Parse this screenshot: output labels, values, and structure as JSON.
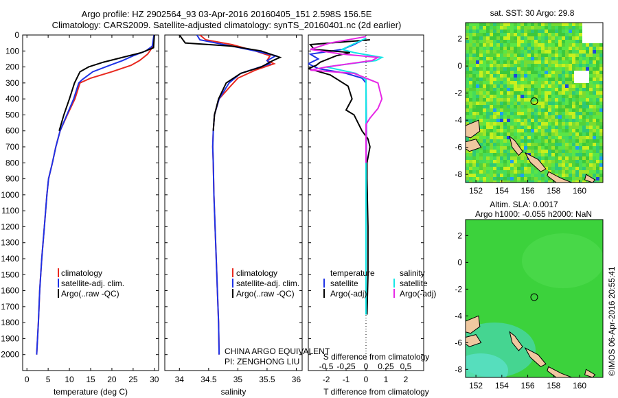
{
  "header": {
    "line1": "Argo profile: HZ 2902564_93 03-Apr-2016 20160405_151 2.598S 156.5E",
    "line2": "Climatology: CARS2009. Satellite-adjusted climatology: synTS_20160401.nc (2d earlier)"
  },
  "colors": {
    "climatology": "#e8281e",
    "satellite": "#1e32e6",
    "argo": "#000000",
    "sal_satellite": "#14e6e6",
    "sal_argo": "#e628e6"
  },
  "chart_data": [
    {
      "type": "line",
      "xlabel": "temperature (deg C)",
      "ylabel": "",
      "xlim": [
        -1,
        31
      ],
      "ylim": [
        2100,
        0
      ],
      "xticks": [
        0,
        5,
        10,
        15,
        20,
        25,
        30
      ],
      "yticks": [
        0,
        100,
        200,
        300,
        400,
        500,
        600,
        700,
        800,
        900,
        1000,
        1100,
        1200,
        1300,
        1400,
        1500,
        1600,
        1700,
        1800,
        1900,
        2000
      ],
      "legend": [
        "climatology",
        "satellite-adj. clim.",
        "Argo(..raw -QC)"
      ],
      "series": [
        {
          "name": "climatology",
          "color": "#e8281e",
          "points": [
            [
              29.9,
              0
            ],
            [
              29.8,
              60
            ],
            [
              29.2,
              90
            ],
            [
              28.4,
              120
            ],
            [
              26.5,
              160
            ],
            [
              24.5,
              190
            ],
            [
              20,
              230
            ],
            [
              15,
              270
            ],
            [
              12.5,
              300
            ],
            [
              11.3,
              400
            ],
            [
              9.5,
              500
            ],
            [
              7.8,
              600
            ],
            [
              6.8,
              700
            ],
            [
              6,
              800
            ],
            [
              5.1,
              900
            ],
            [
              4.7,
              1000
            ],
            [
              4.1,
              1200
            ],
            [
              3.5,
              1400
            ],
            [
              3,
              1600
            ],
            [
              2.7,
              1800
            ],
            [
              2.3,
              2000
            ]
          ]
        },
        {
          "name": "satellite-adj. clim.",
          "color": "#1e32e6",
          "points": [
            [
              29.9,
              0
            ],
            [
              29.5,
              70
            ],
            [
              28,
              100
            ],
            [
              25,
              130
            ],
            [
              22.5,
              160
            ],
            [
              19.5,
              190
            ],
            [
              15.5,
              230
            ],
            [
              13,
              280
            ],
            [
              12.2,
              300
            ],
            [
              11,
              400
            ],
            [
              9.4,
              500
            ],
            [
              7.8,
              600
            ],
            [
              6.8,
              700
            ],
            [
              6,
              800
            ],
            [
              5.1,
              900
            ],
            [
              4.7,
              1000
            ],
            [
              4.1,
              1200
            ],
            [
              3.5,
              1400
            ],
            [
              3,
              1600
            ],
            [
              2.7,
              1800
            ],
            [
              2.3,
              2000
            ]
          ]
        },
        {
          "name": "Argo(..raw -QC)",
          "color": "#000000",
          "points": [
            [
              30,
              0
            ],
            [
              29.8,
              80
            ],
            [
              27,
              110
            ],
            [
              22.5,
              140
            ],
            [
              18,
              170
            ],
            [
              14.5,
              200
            ],
            [
              12.5,
              230
            ],
            [
              11.2,
              300
            ],
            [
              10,
              400
            ],
            [
              8.7,
              500
            ],
            [
              7.6,
              600
            ]
          ]
        }
      ]
    },
    {
      "type": "line",
      "xlabel": "salinity",
      "ylabel": "",
      "xlim": [
        33.75,
        36.1
      ],
      "ylim": [
        2100,
        0
      ],
      "xticks": [
        34,
        34.5,
        35,
        35.5,
        36
      ],
      "legend": [
        "climatology",
        "satellite-adj. clim.",
        "Argo(..raw -QC)"
      ],
      "annotations": [
        "CHINA ARGO EQUIVALENT",
        "PI: ZENGHONG LIU"
      ],
      "series": [
        {
          "name": "climatology",
          "color": "#e8281e",
          "points": [
            [
              34.35,
              0
            ],
            [
              34.45,
              30
            ],
            [
              34.9,
              60
            ],
            [
              35.3,
              100
            ],
            [
              35.55,
              130
            ],
            [
              35.5,
              160
            ],
            [
              35.62,
              180
            ],
            [
              35.3,
              220
            ],
            [
              35,
              270
            ],
            [
              34.85,
              330
            ],
            [
              34.68,
              400
            ],
            [
              34.6,
              500
            ],
            [
              34.58,
              600
            ],
            [
              34.57,
              700
            ],
            [
              34.58,
              800
            ],
            [
              34.59,
              1000
            ],
            [
              34.61,
              1200
            ],
            [
              34.63,
              1400
            ],
            [
              34.65,
              1600
            ],
            [
              34.67,
              1800
            ],
            [
              34.68,
              2000
            ]
          ]
        },
        {
          "name": "satellite-adj. clim.",
          "color": "#1e32e6",
          "points": [
            [
              34.3,
              0
            ],
            [
              34.35,
              30
            ],
            [
              34.9,
              70
            ],
            [
              35.3,
              100
            ],
            [
              35.65,
              130
            ],
            [
              35.5,
              160
            ],
            [
              35.55,
              180
            ],
            [
              35.3,
              210
            ],
            [
              35.05,
              240
            ],
            [
              34.85,
              300
            ],
            [
              34.68,
              400
            ],
            [
              34.6,
              500
            ],
            [
              34.58,
              600
            ],
            [
              34.57,
              700
            ],
            [
              34.58,
              800
            ],
            [
              34.59,
              1000
            ],
            [
              34.61,
              1200
            ],
            [
              34.63,
              1400
            ],
            [
              34.65,
              1600
            ],
            [
              34.67,
              1800
            ],
            [
              34.68,
              2000
            ]
          ]
        },
        {
          "name": "Argo(..raw -QC)",
          "color": "#000000",
          "points": [
            [
              34.0,
              0
            ],
            [
              34.1,
              50
            ],
            [
              34.9,
              70
            ],
            [
              35.4,
              100
            ],
            [
              35.72,
              140
            ],
            [
              35.6,
              160
            ],
            [
              35.4,
              200
            ],
            [
              35.05,
              240
            ],
            [
              34.8,
              300
            ],
            [
              34.67,
              400
            ],
            [
              34.6,
              500
            ],
            [
              34.58,
              600
            ]
          ]
        }
      ]
    },
    {
      "type": "line",
      "xlabel": "T difference from climatology",
      "xlabel2": "S difference from climatology",
      "xlim": [
        -2.9,
        2.9
      ],
      "ylim": [
        2100,
        0
      ],
      "xticks_T": [
        -2,
        -1,
        0,
        1,
        2
      ],
      "xticks_S": [
        "-0.5",
        "-0.25",
        "0",
        "0.25",
        "0.5"
      ],
      "legend_titles": [
        "temperature",
        "salinity"
      ],
      "legend": [
        "satellite",
        "Argo(-adj)",
        "satellite",
        "Argo(-adj)"
      ],
      "series": [
        {
          "name": "satellite",
          "color": "#1e32e6",
          "points": [
            [
              0,
              20
            ],
            [
              -0.6,
              60
            ],
            [
              -1.2,
              90
            ],
            [
              -2.8,
              120
            ],
            [
              -2.4,
              150
            ],
            [
              -2.9,
              180
            ],
            [
              -2.4,
              210
            ],
            [
              -1,
              240
            ],
            [
              -0.2,
              270
            ],
            [
              0,
              300
            ],
            [
              0.02,
              600
            ],
            [
              0,
              1000
            ],
            [
              0,
              1500
            ],
            [
              0,
              1750
            ]
          ]
        },
        {
          "name": "Argo(-adj)",
          "color": "#000000",
          "points": [
            [
              0.2,
              30
            ],
            [
              -2.8,
              60
            ],
            [
              -2.6,
              90
            ],
            [
              -0.8,
              110
            ],
            [
              -1.5,
              130
            ],
            [
              -2.3,
              170
            ],
            [
              -2.5,
              190
            ],
            [
              -2.9,
              210
            ],
            [
              -1.8,
              250
            ],
            [
              -0.9,
              320
            ],
            [
              -0.7,
              400
            ],
            [
              -1,
              470
            ],
            [
              -0.6,
              500
            ],
            [
              -0.2,
              600
            ],
            [
              0.1,
              650
            ],
            [
              0.2,
              700
            ],
            [
              0.05,
              800
            ],
            [
              0.05,
              900
            ],
            [
              0.1,
              1200
            ],
            [
              0.1,
              1500
            ],
            [
              0.05,
              1750
            ]
          ]
        },
        {
          "name": "satellite",
          "color": "#14e6e6",
          "points": [
            [
              0,
              20
            ],
            [
              -1.2,
              90
            ],
            [
              -0.6,
              110
            ],
            [
              0.8,
              140
            ],
            [
              0.5,
              160
            ],
            [
              -0.8,
              180
            ],
            [
              -2,
              200
            ],
            [
              -0.5,
              240
            ],
            [
              0,
              280
            ],
            [
              0,
              400
            ],
            [
              0,
              1000
            ],
            [
              0,
              1500
            ],
            [
              0,
              1750
            ]
          ]
        },
        {
          "name": "Argo(-adj)",
          "color": "#e628e6",
          "points": [
            [
              0,
              10
            ],
            [
              -1.8,
              50
            ],
            [
              -2.8,
              90
            ],
            [
              -1.2,
              120
            ],
            [
              0.6,
              140
            ],
            [
              0.3,
              160
            ],
            [
              -2,
              200
            ],
            [
              -2.8,
              220
            ],
            [
              -0.6,
              240
            ],
            [
              0.6,
              300
            ],
            [
              0.8,
              400
            ],
            [
              0.6,
              460
            ],
            [
              0.2,
              520
            ],
            [
              0,
              560
            ],
            [
              0,
              800
            ]
          ]
        }
      ]
    },
    {
      "type": "heatmap",
      "title": "sat. SST: 30 Argo: 29.8",
      "xticks": [
        152,
        154,
        156,
        158,
        160
      ],
      "yticks": [
        -8,
        -6,
        -4,
        -2,
        0,
        2
      ],
      "xlim": [
        151.2,
        161.8
      ],
      "ylim": [
        -8.6,
        3.2
      ],
      "marker": [
        156.5,
        -2.598
      ]
    },
    {
      "type": "heatmap",
      "title": "Altim. SLA: 0.0017",
      "subtitle": "Argo h1000: -0.055 h2000: NaN",
      "xticks": [
        152,
        154,
        156,
        158,
        160
      ],
      "yticks": [
        -8,
        -6,
        -4,
        -2,
        0,
        2
      ],
      "xlim": [
        151.2,
        161.8
      ],
      "ylim": [
        -8.6,
        3.2
      ],
      "marker": [
        156.5,
        -2.598
      ]
    }
  ],
  "credit": "©IMOS 06-Apr-2016 20:55:41"
}
